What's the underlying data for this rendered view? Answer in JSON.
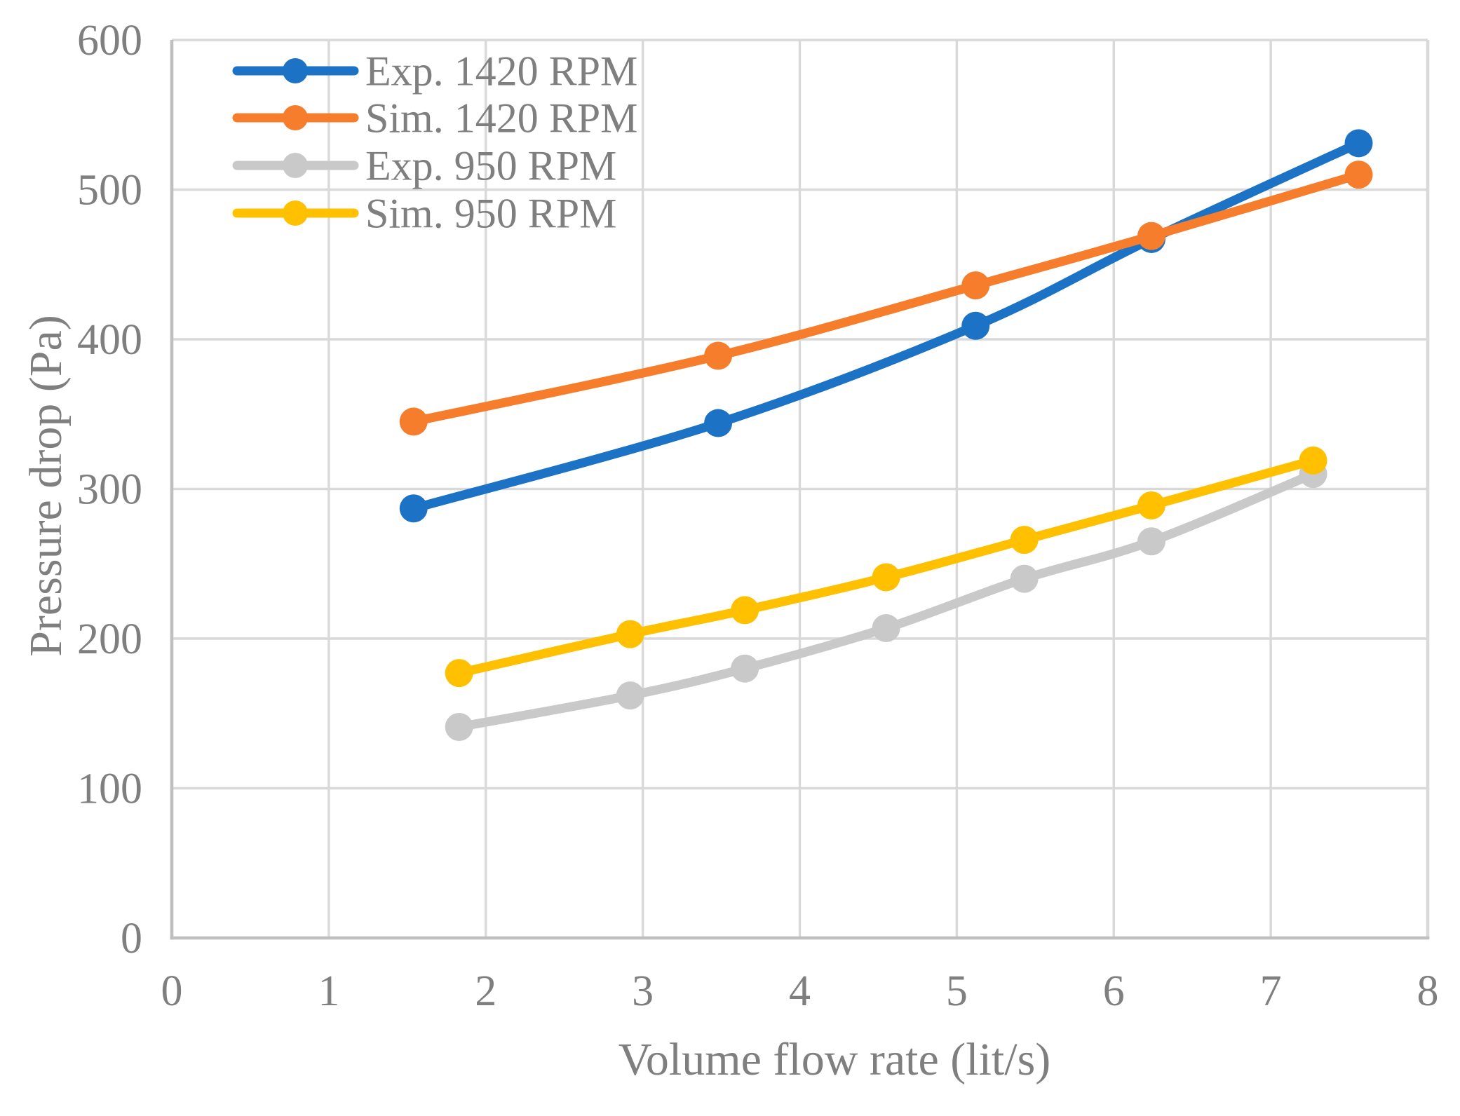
{
  "chart_data": {
    "type": "line",
    "title": "",
    "xlabel": "Volume flow rate (lit/s)",
    "ylabel": "Pressure drop (Pa)",
    "xlim": [
      0,
      8
    ],
    "ylim": [
      0,
      600
    ],
    "xticks": [
      0,
      1,
      2,
      3,
      4,
      5,
      6,
      7,
      8
    ],
    "yticks": [
      0,
      100,
      200,
      300,
      400,
      500,
      600
    ],
    "grid": true,
    "legend_position": "top-left-inside",
    "marker": "circle",
    "smooth_lines": true,
    "series": [
      {
        "name": "Exp. 1420 RPM",
        "color": "#1C72C4",
        "x": [
          1.54,
          3.48,
          5.12,
          6.24,
          7.56
        ],
        "y": [
          287,
          344,
          409,
          467,
          531
        ]
      },
      {
        "name": "Sim. 1420 RPM",
        "color": "#F57D2C",
        "x": [
          1.54,
          3.48,
          5.12,
          6.24,
          7.56
        ],
        "y": [
          345,
          389,
          436,
          469,
          510
        ]
      },
      {
        "name": "Exp. 950 RPM",
        "color": "#C9C9C9",
        "x": [
          1.83,
          2.92,
          3.65,
          4.55,
          5.43,
          6.24,
          7.27
        ],
        "y": [
          141,
          162,
          180,
          207,
          240,
          265,
          310
        ]
      },
      {
        "name": "Sim. 950 RPM",
        "color": "#FFC000",
        "x": [
          1.83,
          2.92,
          3.65,
          4.55,
          5.43,
          6.24,
          7.27
        ],
        "y": [
          177,
          203,
          219,
          241,
          266,
          289,
          319
        ]
      }
    ],
    "style": {
      "grid_color": "#D9D9D9",
      "axis_color": "#BFBFBF",
      "text_color": "#7F7F7F",
      "background": "#FFFFFF"
    }
  }
}
